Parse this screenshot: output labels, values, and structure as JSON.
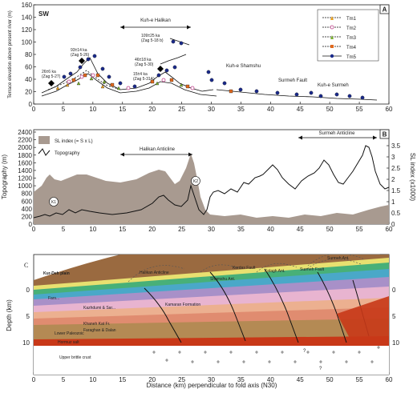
{
  "panelA": {
    "badge": "A",
    "left_corner": "SW",
    "right_corner": "NE",
    "ylabel": "Terrace elevation above present river (m)",
    "yticks": [
      "0",
      "20",
      "40",
      "60",
      "80",
      "100",
      "120",
      "140",
      "160"
    ],
    "xticks": [
      "0",
      "5",
      "10",
      "15",
      "20",
      "25",
      "30",
      "35",
      "40",
      "45",
      "50",
      "55",
      "60"
    ],
    "annotations": {
      "kuh_halikan": "Kuh-e Halikan",
      "kuh_shamshu": "Kuh-e Shamshu",
      "surmeh_fault": "Surmeh Fault",
      "kuh_surmeh": "Kuh-e Surmeh",
      "a1": "26±6 ka",
      "a1b": "(Zag 5-27)",
      "a2": "93±14 ka",
      "a2b": "(Zag 5-26)",
      "a3": "109±25 ka",
      "a3b": "(Zag 5-18 b)",
      "a4": "46±18 ka",
      "a4b": "(Zag 5-30)",
      "a5": "15±4 ka",
      "a5b": "(Zag 5-31A)"
    },
    "legend": [
      "Tm1",
      "Tm2",
      "Tm3",
      "Tm4",
      "Tm5"
    ],
    "colors": {
      "Tm1": "#e8a020",
      "Tm2": "#c0408a",
      "Tm3": "#7ab030",
      "Tm4": "#e06a20",
      "Tm5": "#1a2a8a"
    }
  },
  "panelB": {
    "badge": "B",
    "ylabel_left": "Topography (m)",
    "ylabel_right": "SL index (x1000)",
    "yticks_left": [
      "0",
      "200",
      "400",
      "600",
      "800",
      "1000",
      "1200",
      "1400",
      "1600",
      "1800",
      "2000",
      "2200",
      "2400"
    ],
    "yticks_right": [
      "0",
      "0.5",
      "1",
      "1.5",
      "2",
      "2.5",
      "3",
      "3.5"
    ],
    "xticks": [
      "0",
      "5",
      "10",
      "15",
      "20",
      "25",
      "30",
      "35",
      "40",
      "45",
      "50",
      "55",
      "60"
    ],
    "legend_sl": "SL index (= S x L)",
    "legend_topo": "Topography",
    "halikan": "Halikan Anticline",
    "surmeh": "Surmeh Anticline",
    "k1": "K1",
    "k2": "K2",
    "colors": {
      "sl_fill": "#a89a90"
    }
  },
  "panelC": {
    "badge": "C",
    "c_left": "C",
    "c_right": "C'",
    "ylabel": "Depth (km)",
    "yticks": [
      "0",
      "5",
      "10"
    ],
    "xlabel": "Distance (km) perpendicular to fold axis (N30)",
    "xticks": [
      "0",
      "5",
      "10",
      "15",
      "20",
      "25",
      "30",
      "35",
      "40",
      "45",
      "50",
      "55",
      "60"
    ],
    "labels": {
      "kuredeh": "Kur-Deh plain",
      "halikan": "Halikan Anticline",
      "shamshu": "Shamshu Ant.",
      "kerdas": "Kerdas Fault",
      "kolagh": "Kolagh Ant.",
      "surmehfault": "Surmeh Fault",
      "surmehant": "Surmeh Ant.",
      "kazhdumi": "Kazhdumi & Sar...",
      "fars": "Fars...",
      "kamaran": "Kamaran Formation",
      "khaneh": "Khaneh Kat Fr.",
      "faraghan": "Faraghan & Dalan",
      "lower": "Lower Paleozoic",
      "hormuz": "Hormuz salt",
      "basement": "Upper brittle crust",
      "q1": "?",
      "q2": "?"
    }
  }
}
